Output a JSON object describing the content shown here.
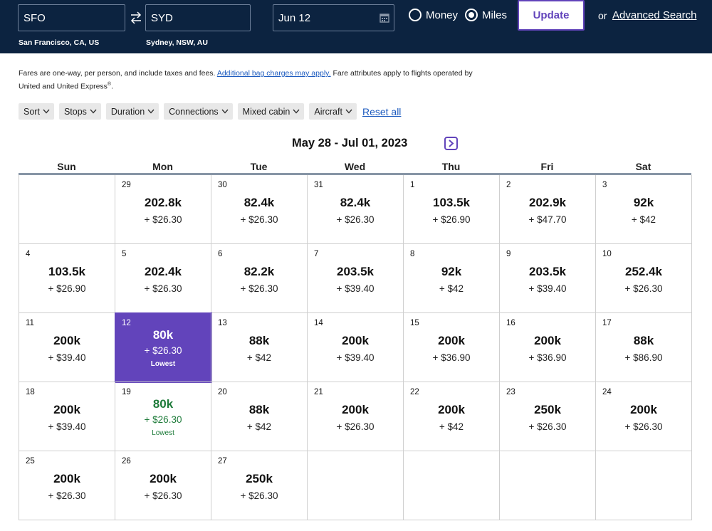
{
  "search": {
    "origin": "SFO",
    "origin_name": "San Francisco, CA, US",
    "destination": "SYD",
    "destination_name": "Sydney, NSW, AU",
    "date": "Jun 12",
    "fare_options": [
      "Money",
      "Miles"
    ],
    "selected_fare": "Miles",
    "update_label": "Update",
    "or_text": "or",
    "advanced_label": "Advanced Search"
  },
  "note": {
    "text1": "Fares are one-way, per person, and include taxes and fees.",
    "link": "Additional bag charges may apply.",
    "text2": "Fare attributes apply to flights operated by United and United Express",
    "reg": "®",
    "end": "."
  },
  "filters": [
    "Sort",
    "Stops",
    "Duration",
    "Connections",
    "Mixed cabin",
    "Aircraft"
  ],
  "reset_label": "Reset all",
  "calendar": {
    "range": "May 28 - Jul 01, 2023",
    "weekdays": [
      "Sun",
      "Mon",
      "Tue",
      "Wed",
      "Thu",
      "Fri",
      "Sat"
    ],
    "weeks": [
      [
        {
          "day": "",
          "miles": "",
          "tax": "",
          "note": ""
        },
        {
          "day": "29",
          "miles": "202.8k",
          "tax": "+ $26.30",
          "note": ""
        },
        {
          "day": "30",
          "miles": "82.4k",
          "tax": "+ $26.30",
          "note": ""
        },
        {
          "day": "31",
          "miles": "82.4k",
          "tax": "+ $26.30",
          "note": ""
        },
        {
          "day": "1",
          "miles": "103.5k",
          "tax": "+ $26.90",
          "note": ""
        },
        {
          "day": "2",
          "miles": "202.9k",
          "tax": "+ $47.70",
          "note": ""
        },
        {
          "day": "3",
          "miles": "92k",
          "tax": "+ $42",
          "note": ""
        }
      ],
      [
        {
          "day": "4",
          "miles": "103.5k",
          "tax": "+ $26.90",
          "note": ""
        },
        {
          "day": "5",
          "miles": "202.4k",
          "tax": "+ $26.30",
          "note": ""
        },
        {
          "day": "6",
          "miles": "82.2k",
          "tax": "+ $26.30",
          "note": ""
        },
        {
          "day": "7",
          "miles": "203.5k",
          "tax": "+ $39.40",
          "note": ""
        },
        {
          "day": "8",
          "miles": "92k",
          "tax": "+ $42",
          "note": ""
        },
        {
          "day": "9",
          "miles": "203.5k",
          "tax": "+ $39.40",
          "note": ""
        },
        {
          "day": "10",
          "miles": "252.4k",
          "tax": "+ $26.30",
          "note": ""
        }
      ],
      [
        {
          "day": "11",
          "miles": "200k",
          "tax": "+ $39.40",
          "note": ""
        },
        {
          "day": "12",
          "miles": "80k",
          "tax": "+ $26.30",
          "note": "Lowest",
          "state": "selected"
        },
        {
          "day": "13",
          "miles": "88k",
          "tax": "+ $42",
          "note": ""
        },
        {
          "day": "14",
          "miles": "200k",
          "tax": "+ $39.40",
          "note": ""
        },
        {
          "day": "15",
          "miles": "200k",
          "tax": "+ $36.90",
          "note": ""
        },
        {
          "day": "16",
          "miles": "200k",
          "tax": "+ $36.90",
          "note": ""
        },
        {
          "day": "17",
          "miles": "88k",
          "tax": "+ $86.90",
          "note": ""
        }
      ],
      [
        {
          "day": "18",
          "miles": "200k",
          "tax": "+ $39.40",
          "note": ""
        },
        {
          "day": "19",
          "miles": "80k",
          "tax": "+ $26.30",
          "note": "Lowest",
          "state": "lowest"
        },
        {
          "day": "20",
          "miles": "88k",
          "tax": "+ $42",
          "note": ""
        },
        {
          "day": "21",
          "miles": "200k",
          "tax": "+ $26.30",
          "note": ""
        },
        {
          "day": "22",
          "miles": "200k",
          "tax": "+ $42",
          "note": ""
        },
        {
          "day": "23",
          "miles": "250k",
          "tax": "+ $26.30",
          "note": ""
        },
        {
          "day": "24",
          "miles": "200k",
          "tax": "+ $26.30",
          "note": ""
        }
      ],
      [
        {
          "day": "25",
          "miles": "200k",
          "tax": "+ $26.30",
          "note": ""
        },
        {
          "day": "26",
          "miles": "200k",
          "tax": "+ $26.30",
          "note": ""
        },
        {
          "day": "27",
          "miles": "250k",
          "tax": "+ $26.30",
          "note": ""
        },
        {
          "day": "",
          "miles": "",
          "tax": "",
          "note": ""
        },
        {
          "day": "",
          "miles": "",
          "tax": "",
          "note": ""
        },
        {
          "day": "",
          "miles": "",
          "tax": "",
          "note": ""
        },
        {
          "day": "",
          "miles": "",
          "tax": "",
          "note": ""
        }
      ]
    ]
  },
  "colors": {
    "header_bg": "#0c2340",
    "accent": "#6244bb",
    "lowest_green": "#1e7b3a",
    "link": "#1d5bbf"
  }
}
